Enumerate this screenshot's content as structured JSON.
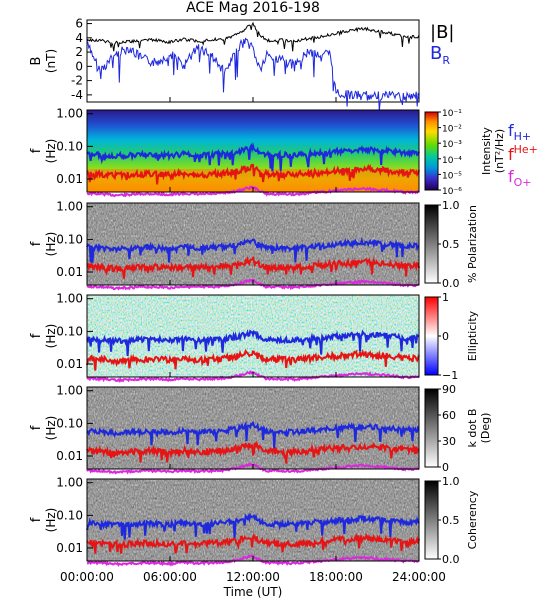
{
  "chart_data": {
    "type": "line",
    "title": "ACE Mag 2016-198",
    "xlabel": "Time (UT)",
    "x_ticks": [
      "00:00:00",
      "06:00:00",
      "12:00:00",
      "18:00:00",
      "24:00:00"
    ],
    "x_range_hours": [
      0,
      24
    ],
    "panels": [
      {
        "id": "field",
        "ylabel": "B",
        "yunit": "(nT)",
        "ylim": [
          -5,
          6.5
        ],
        "yticks": [
          "6",
          "4",
          "2",
          "0",
          "-2",
          "-4"
        ],
        "legend": [
          "|B|",
          "B"
        ],
        "legend_sub": [
          "",
          "R"
        ],
        "series": [
          {
            "name": "|B|",
            "color": "#000000",
            "x": [
              0,
              1,
              2,
              3,
              4,
              5,
              6,
              7,
              8,
              9,
              10,
              11,
              11.5,
              12,
              12.5,
              13,
              14,
              15,
              16,
              17,
              17.5,
              18,
              19,
              20,
              21,
              22,
              23,
              24
            ],
            "y": [
              3.8,
              3.6,
              3.3,
              3.5,
              3.6,
              3.7,
              3.4,
              3.8,
              3.5,
              3.7,
              3.9,
              4.6,
              5.4,
              5.9,
              4.4,
              3.6,
              3.7,
              3.5,
              3.9,
              4.2,
              4.4,
              4.6,
              5.0,
              5.3,
              4.9,
              4.6,
              4.1,
              4.2
            ]
          },
          {
            "name": "B",
            "sub": "R",
            "color": "#1e28dc",
            "x": [
              0,
              1,
              2,
              3,
              4,
              5,
              6,
              7,
              8,
              9,
              10,
              11,
              11.5,
              12,
              12.5,
              13,
              14,
              15,
              16,
              17,
              17.5,
              18,
              19,
              20,
              21,
              22,
              23,
              24
            ],
            "y": [
              3.0,
              -0.5,
              1.5,
              2.6,
              1.0,
              0.5,
              1.8,
              0.0,
              2.8,
              1.5,
              -1.0,
              2.8,
              3.6,
              2.5,
              -0.5,
              1.5,
              1.0,
              0.0,
              2.2,
              1.5,
              2.0,
              -3.7,
              -4.0,
              -4.2,
              -4.1,
              -4.0,
              -4.3,
              -4.2
            ]
          }
        ]
      },
      {
        "id": "intensity",
        "ylabel": "f",
        "yunit": "(Hz)",
        "yscale": "log",
        "ylim": [
          0.004,
          1.3
        ],
        "yticks": [
          "1.00",
          "0.10",
          "0.01"
        ],
        "colorbar": {
          "label": "Intensity",
          "unit": "(nT²/Hz)",
          "ticks": [
            "10⁻¹",
            "10⁻²",
            "10⁻³",
            "10⁻⁴",
            "10⁻⁵",
            "10⁻⁶"
          ]
        },
        "legend": [
          "f",
          "f",
          "f"
        ],
        "legend_sub": [
          "H+",
          "",
          "O+"
        ],
        "legend_sup": [
          "",
          "He+",
          ""
        ]
      },
      {
        "id": "polarization",
        "ylabel": "f",
        "yunit": "(Hz)",
        "yscale": "log",
        "yticks": [
          "1.00",
          "0.10",
          "0.01"
        ],
        "colorbar": {
          "label": "% Polarization",
          "ticks": [
            "1.0",
            "0.5",
            "0.0"
          ]
        }
      },
      {
        "id": "ellipticity",
        "ylabel": "f",
        "yunit": "(Hz)",
        "yscale": "log",
        "yticks": [
          "1.00",
          "0.10",
          "0.01"
        ],
        "colorbar": {
          "label": "Ellipticity",
          "ticks": [
            "1",
            "0",
            "−1"
          ]
        }
      },
      {
        "id": "kdotb",
        "ylabel": "f",
        "yunit": "(Hz)",
        "yscale": "log",
        "yticks": [
          "1.00",
          "0.10",
          "0.01"
        ],
        "colorbar": {
          "label": "k dot B",
          "unit": "(Deg)",
          "ticks": [
            "90",
            "60",
            "30",
            "0"
          ]
        }
      },
      {
        "id": "coherency",
        "ylabel": "f",
        "yunit": "(Hz)",
        "yscale": "log",
        "yticks": [
          "1.00",
          "0.10",
          "0.01"
        ],
        "colorbar": {
          "label": "Coherency",
          "ticks": [
            "1.0",
            "0.5",
            "0.0"
          ]
        }
      }
    ],
    "gyro_frequency_lines": {
      "x": [
        0,
        1,
        2,
        3,
        4,
        5,
        6,
        7,
        8,
        9,
        10,
        11,
        11.5,
        12,
        12.5,
        13,
        14,
        15,
        16,
        17,
        17.5,
        18,
        19,
        20,
        21,
        22,
        23,
        24
      ],
      "H+": [
        0.058,
        0.055,
        0.05,
        0.053,
        0.055,
        0.056,
        0.052,
        0.058,
        0.053,
        0.056,
        0.06,
        0.07,
        0.082,
        0.09,
        0.067,
        0.055,
        0.056,
        0.053,
        0.06,
        0.064,
        0.067,
        0.07,
        0.076,
        0.081,
        0.075,
        0.07,
        0.062,
        0.064
      ],
      "He+": [
        0.0145,
        0.0138,
        0.0126,
        0.0133,
        0.0138,
        0.0141,
        0.013,
        0.0145,
        0.0134,
        0.0141,
        0.0149,
        0.0175,
        0.0206,
        0.0225,
        0.0168,
        0.0138,
        0.0141,
        0.0134,
        0.0149,
        0.016,
        0.0168,
        0.0175,
        0.019,
        0.0203,
        0.0187,
        0.0175,
        0.0156,
        0.016
      ],
      "O+": [
        0.0036,
        0.0035,
        0.0032,
        0.0033,
        0.0035,
        0.0035,
        0.0033,
        0.0036,
        0.0034,
        0.0035,
        0.0037,
        0.0044,
        0.0052,
        0.0056,
        0.0042,
        0.0035,
        0.0035,
        0.0034,
        0.0037,
        0.004,
        0.0042,
        0.0044,
        0.0048,
        0.0051,
        0.0047,
        0.0044,
        0.0039,
        0.004
      ],
      "colors": {
        "H+": "#1e28dc",
        "He+": "#e61414",
        "O+": "#dc28dc"
      }
    }
  }
}
